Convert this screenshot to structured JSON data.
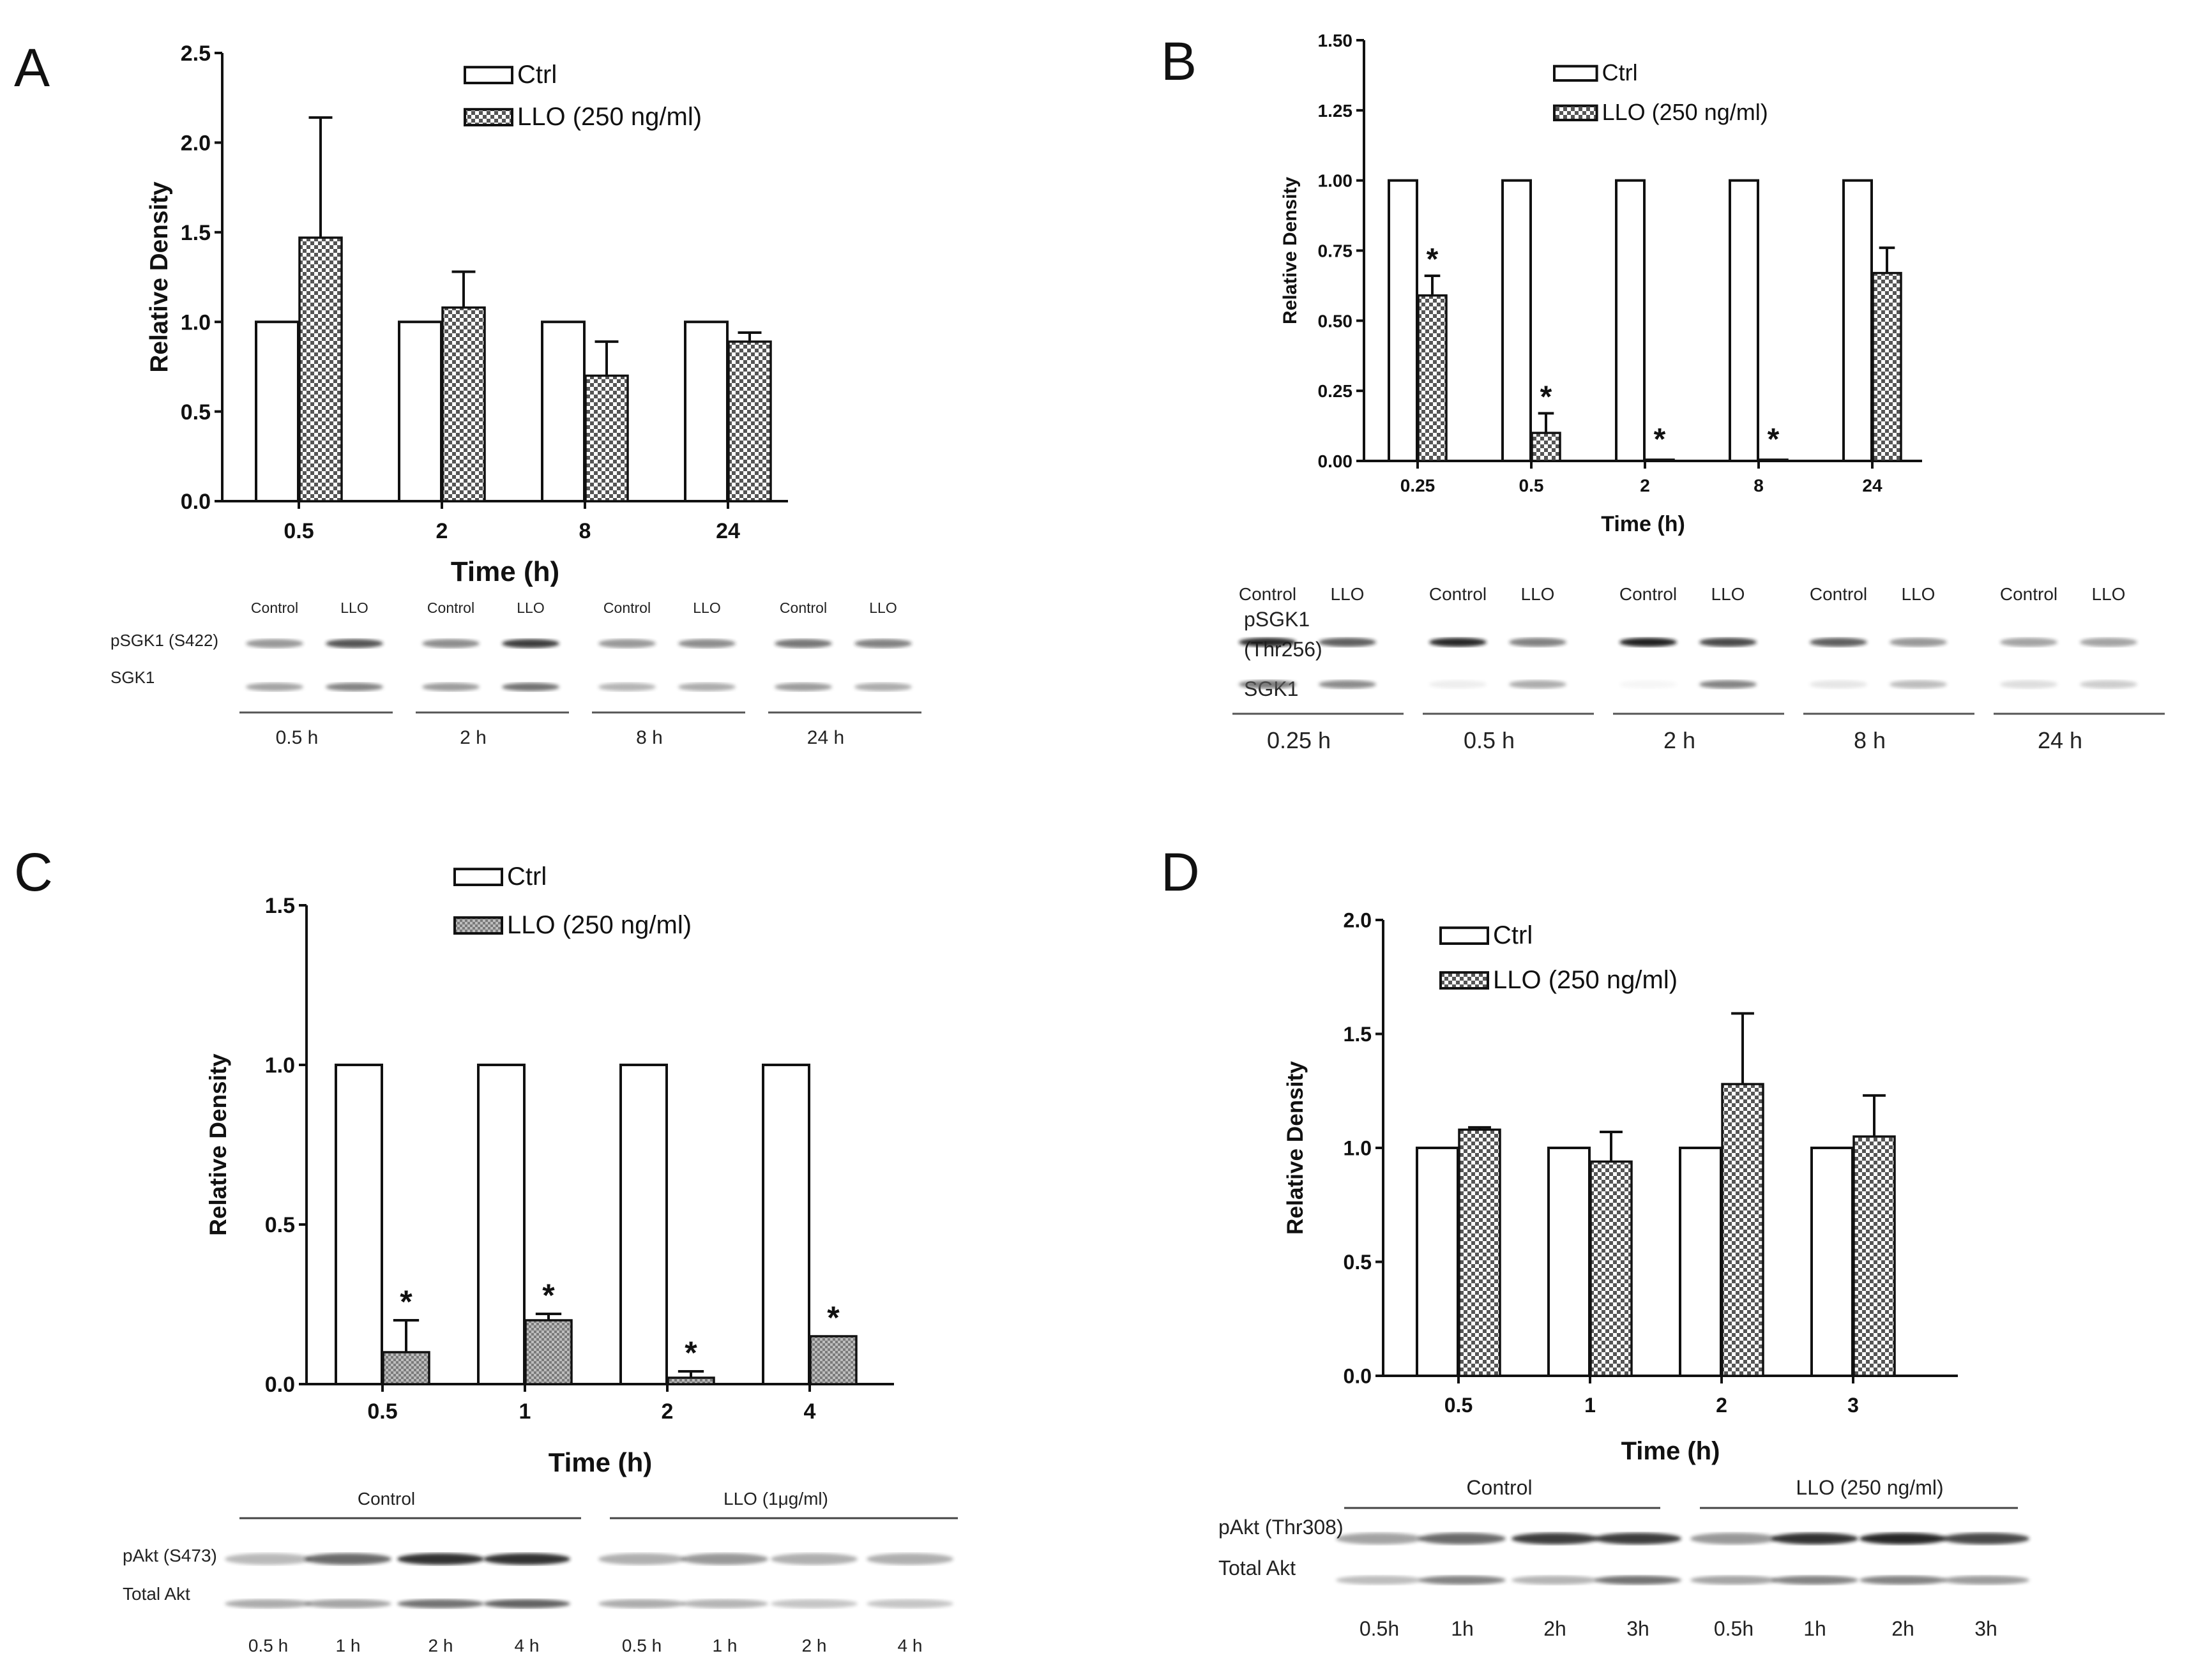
{
  "colors": {
    "axis": "#111111",
    "bar_ctrl_fill": "#ffffff",
    "bar_llo_a": "#6f6f6f",
    "bar_llo_c": "#9a9a9a",
    "band_dark": "#1a1a1a",
    "band_mid": "#5a5a5a",
    "band_light": "#a8a8a8"
  },
  "chart_data": [
    {
      "panel": "A",
      "type": "bar",
      "categories": [
        "0.5",
        "2",
        "8",
        "24"
      ],
      "series": [
        {
          "name": "Ctrl",
          "values": [
            1.0,
            1.0,
            1.0,
            1.0
          ]
        },
        {
          "name": "LLO (250 ng/ml)",
          "values": [
            1.47,
            1.08,
            0.7,
            0.89
          ],
          "errors": [
            0.67,
            0.2,
            0.19,
            0.05
          ]
        }
      ],
      "significance": [
        "",
        "",
        "",
        ""
      ],
      "ylim": [
        0,
        2.5
      ],
      "yticks": [
        "0.0",
        "0.5",
        "1.0",
        "1.5",
        "2.0",
        "2.5"
      ],
      "xlabel": "Time (h)",
      "ylabel": "Relative Density",
      "legend": [
        "Ctrl",
        "LLO (250 ng/ml)"
      ],
      "blot": {
        "groups": [
          {
            "label": "0.5 h",
            "lanes": [
              "Control",
              "LLO"
            ]
          },
          {
            "label": "2 h",
            "lanes": [
              "Control",
              "LLO"
            ]
          },
          {
            "label": "8 h",
            "lanes": [
              "Control",
              "LLO"
            ]
          },
          {
            "label": "24 h",
            "lanes": [
              "Control",
              "LLO"
            ]
          }
        ],
        "rows": [
          "pSGK1 (S422)",
          "SGK1"
        ]
      }
    },
    {
      "panel": "B",
      "type": "bar",
      "categories": [
        "0.25",
        "0.5",
        "2",
        "8",
        "24"
      ],
      "series": [
        {
          "name": "Ctrl",
          "values": [
            1.0,
            1.0,
            1.0,
            1.0,
            1.0
          ]
        },
        {
          "name": "LLO (250 ng/ml)",
          "values": [
            0.59,
            0.1,
            0.003,
            0.0,
            0.67
          ],
          "errors": [
            0.07,
            0.07,
            0.0,
            0.0,
            0.09
          ]
        }
      ],
      "significance": [
        "*",
        "*",
        "*",
        "*",
        ""
      ],
      "ylim": [
        0,
        1.5
      ],
      "yticks": [
        "0.00",
        "0.25",
        "0.50",
        "0.75",
        "1.00",
        "1.25",
        "1.50"
      ],
      "xlabel": "Time (h)",
      "ylabel": "Relative Density",
      "legend": [
        "Ctrl",
        "LLO (250 ng/ml)"
      ],
      "blot": {
        "groups": [
          {
            "label": "0.25 h",
            "lanes": [
              "Control",
              "LLO"
            ]
          },
          {
            "label": "0.5 h",
            "lanes": [
              "Control",
              "LLO"
            ]
          },
          {
            "label": "2 h",
            "lanes": [
              "Control",
              "LLO"
            ]
          },
          {
            "label": "8 h",
            "lanes": [
              "Control",
              "LLO"
            ]
          },
          {
            "label": "24 h",
            "lanes": [
              "Control",
              "LLO"
            ]
          }
        ],
        "rows": [
          "pSGK1",
          "(Thr256)",
          "SGK1"
        ]
      }
    },
    {
      "panel": "C",
      "type": "bar",
      "categories": [
        "0.5",
        "1",
        "2",
        "4"
      ],
      "series": [
        {
          "name": "Ctrl",
          "values": [
            1.0,
            1.0,
            1.0,
            1.0
          ]
        },
        {
          "name": "LLO (250 ng/ml)",
          "values": [
            0.1,
            0.2,
            0.02,
            0.15
          ],
          "errors": [
            0.1,
            0.02,
            0.02,
            0.0
          ]
        }
      ],
      "significance": [
        "*",
        "*",
        "*",
        "*"
      ],
      "ylim": [
        0,
        1.5
      ],
      "yticks": [
        "0.0",
        "0.5",
        "1.0",
        "1.5"
      ],
      "xlabel": "Time (h)",
      "ylabel": "Relative Density",
      "legend": [
        "Ctrl",
        "LLO (250 ng/ml)"
      ],
      "blot": {
        "headers": [
          "Control",
          "LLO (1μg/ml)"
        ],
        "rows": [
          "pAkt (S473)",
          "Total Akt"
        ],
        "lanes": [
          "0.5 h",
          "1 h",
          "2 h",
          "4 h",
          "0.5 h",
          "1 h",
          "2 h",
          "4 h"
        ]
      }
    },
    {
      "panel": "D",
      "type": "bar",
      "categories": [
        "0.5",
        "1",
        "2",
        "3"
      ],
      "series": [
        {
          "name": "Ctrl",
          "values": [
            1.0,
            1.0,
            1.0,
            1.0
          ]
        },
        {
          "name": "LLO (250 ng/ml)",
          "values": [
            1.08,
            0.94,
            1.28,
            1.05
          ],
          "errors": [
            0.01,
            0.13,
            0.31,
            0.18
          ]
        }
      ],
      "significance": [
        "",
        "",
        "",
        ""
      ],
      "ylim": [
        0,
        2.0
      ],
      "yticks": [
        "0.0",
        "0.5",
        "1.0",
        "1.5",
        "2.0"
      ],
      "xlabel": "Time (h)",
      "ylabel": "Relative Density",
      "legend": [
        "Ctrl",
        "LLO (250 ng/ml)"
      ],
      "blot": {
        "headers": [
          "Control",
          "LLO (250 ng/ml)"
        ],
        "rows": [
          "pAkt (Thr308)",
          "Total Akt"
        ],
        "lanes": [
          "0.5h",
          "1h",
          "2h",
          "3h",
          "0.5h",
          "1h",
          "2h",
          "3h"
        ]
      }
    }
  ]
}
